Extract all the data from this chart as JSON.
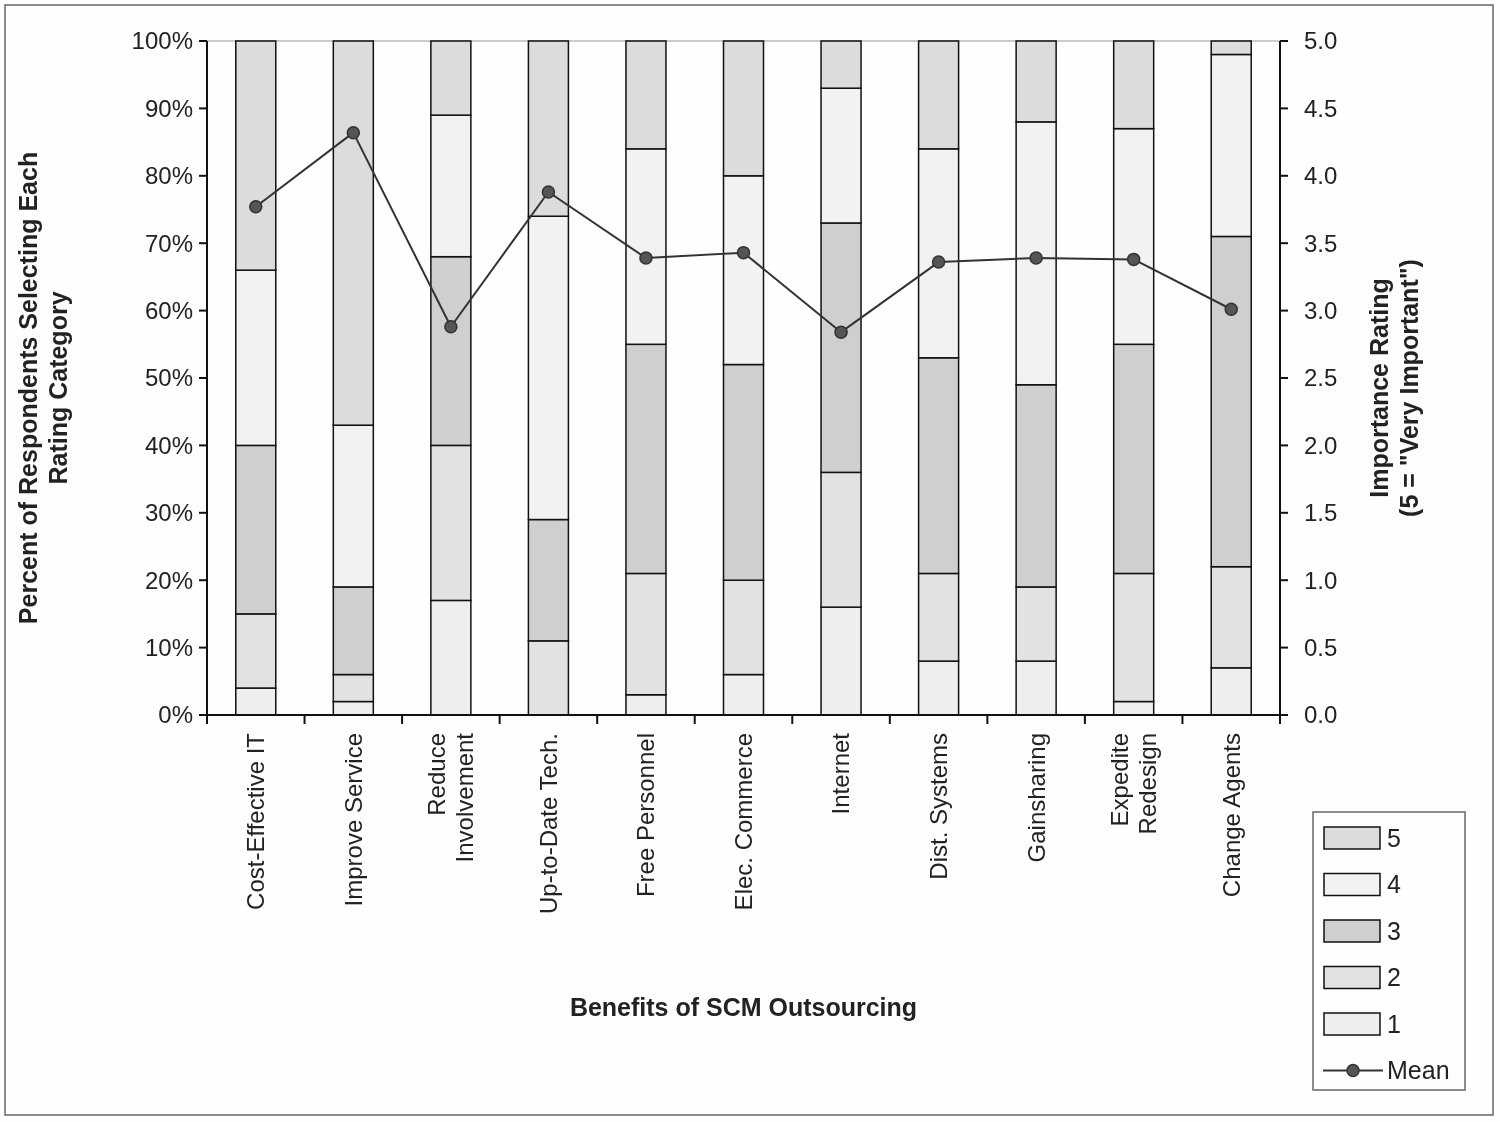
{
  "chart_data": {
    "type": "bar",
    "stacked": true,
    "xlabel": "Benefits of SCM Outsourcing",
    "ylabel": "Percent of Respondents Selecting Each\nRating Category",
    "y2label": "Importance Rating\n(5 = \"Very Important\")",
    "categories": [
      "Cost-Effective IT",
      "Improve Service",
      "Reduce\nInvolvement",
      "Up-to-Date Tech.",
      "Free Personnel",
      "Elec. Commerce",
      "Internet",
      "Dist. Systems",
      "Gainsharing",
      "Expedite\nRedesign",
      "Change Agents"
    ],
    "series": [
      {
        "name": "1",
        "color": "#eeeeee",
        "values": [
          4,
          2,
          17,
          0,
          3,
          6,
          16,
          8,
          8,
          2,
          7
        ]
      },
      {
        "name": "2",
        "color": "#e2e2e2",
        "values": [
          11,
          4,
          23,
          11,
          18,
          14,
          20,
          13,
          11,
          19,
          15
        ]
      },
      {
        "name": "3",
        "color": "#cfcfcf",
        "values": [
          25,
          13,
          28,
          18,
          34,
          32,
          37,
          32,
          30,
          34,
          49
        ]
      },
      {
        "name": "4",
        "color": "#f2f2f2",
        "values": [
          26,
          24,
          21,
          45,
          29,
          28,
          20,
          31,
          39,
          32,
          27
        ]
      },
      {
        "name": "5",
        "color": "#dcdcdc",
        "values": [
          34,
          57,
          11,
          26,
          16,
          20,
          7,
          16,
          12,
          13,
          2
        ]
      },
      {
        "name": "Mean",
        "type": "line",
        "axis": "y2",
        "color": "#333333",
        "marker": "circle",
        "values": [
          3.77,
          4.32,
          2.88,
          3.88,
          3.39,
          3.43,
          2.84,
          3.36,
          3.39,
          3.38,
          3.01
        ]
      }
    ],
    "ylim": [
      0,
      100
    ],
    "yticks": [
      {
        "value": 0,
        "label": "0%"
      },
      {
        "value": 10,
        "label": "10%"
      },
      {
        "value": 20,
        "label": "20%"
      },
      {
        "value": 30,
        "label": "30%"
      },
      {
        "value": 40,
        "label": "40%"
      },
      {
        "value": 50,
        "label": "50%"
      },
      {
        "value": 60,
        "label": "60%"
      },
      {
        "value": 70,
        "label": "70%"
      },
      {
        "value": 80,
        "label": "80%"
      },
      {
        "value": 90,
        "label": "90%"
      },
      {
        "value": 100,
        "label": "100%"
      }
    ],
    "y2lim": [
      0,
      5
    ],
    "y2ticks": [
      {
        "value": 0,
        "label": "0.0"
      },
      {
        "value": 0.5,
        "label": "0.5"
      },
      {
        "value": 1,
        "label": "1.0"
      },
      {
        "value": 1.5,
        "label": "1.5"
      },
      {
        "value": 2,
        "label": "2.0"
      },
      {
        "value": 2.5,
        "label": "2.5"
      },
      {
        "value": 3,
        "label": "3.0"
      },
      {
        "value": 3.5,
        "label": "3.5"
      },
      {
        "value": 4,
        "label": "4.0"
      },
      {
        "value": 4.5,
        "label": "4.5"
      },
      {
        "value": 5,
        "label": "5.0"
      }
    ],
    "legend": "bottom right",
    "grid": false
  }
}
